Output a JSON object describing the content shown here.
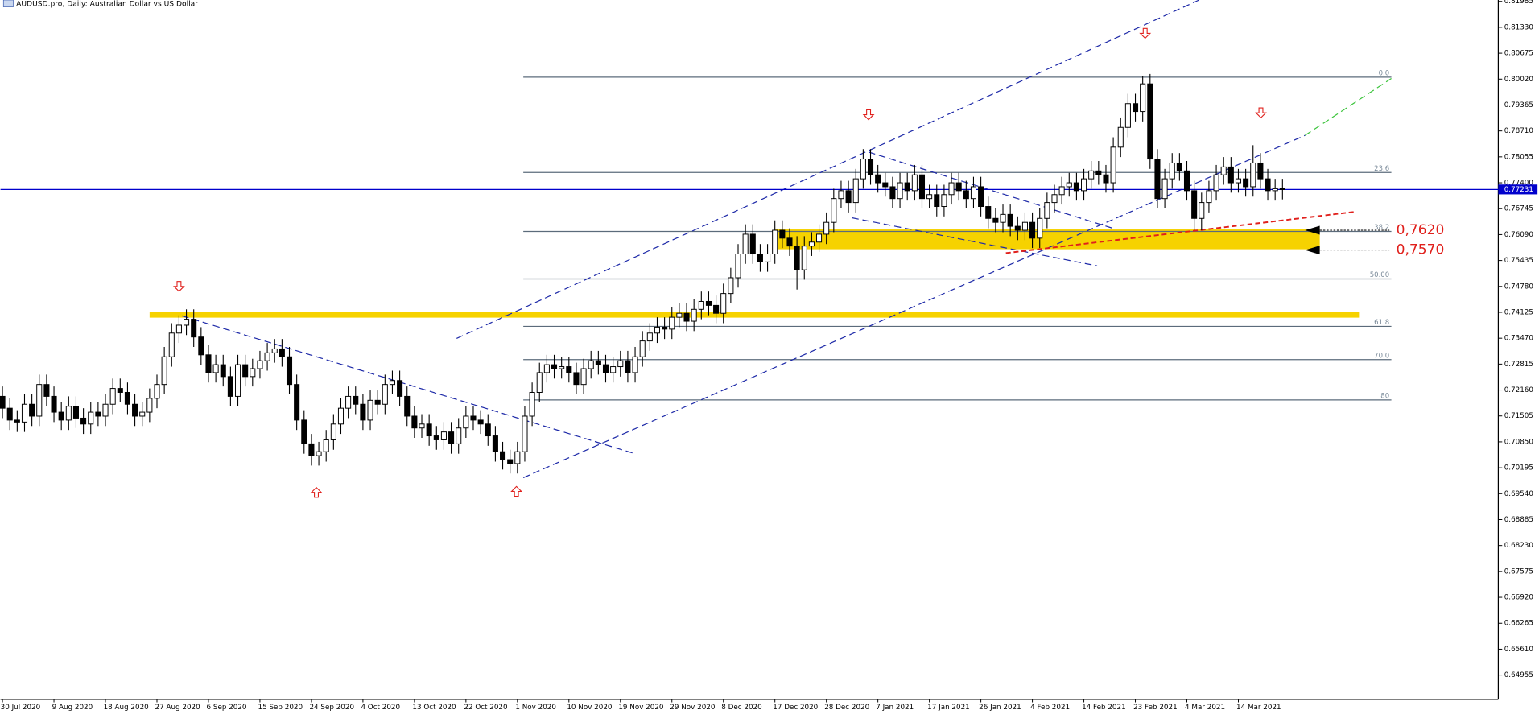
{
  "chart_data": {
    "type": "candlestick",
    "title": "AUDUSD.pro, Daily:  Australian Dollar vs US Dollar",
    "categories": [
      "30 Jul 2020",
      null,
      null,
      null,
      null,
      null,
      null,
      "9 Aug 2020",
      null,
      null,
      null,
      null,
      null,
      null,
      "18 Aug 2020",
      null,
      null,
      null,
      null,
      null,
      null,
      "27 Aug 2020",
      null,
      null,
      null,
      null,
      null,
      null,
      "6 Sep 2020",
      null,
      null,
      null,
      null,
      null,
      null,
      "15 Sep 2020",
      null,
      null,
      null,
      null,
      null,
      null,
      "24 Sep 2020",
      null,
      null,
      null,
      null,
      null,
      null,
      "4 Oct 2020",
      null,
      null,
      null,
      null,
      null,
      null,
      "13 Oct 2020",
      null,
      null,
      null,
      null,
      null,
      null,
      "22 Oct 2020",
      null,
      null,
      null,
      null,
      null,
      null,
      "1 Nov 2020",
      null,
      null,
      null,
      null,
      null,
      null,
      "10 Nov 2020",
      null,
      null,
      null,
      null,
      null,
      null,
      "19 Nov 2020",
      null,
      null,
      null,
      null,
      null,
      null,
      "29 Nov 2020",
      null,
      null,
      null,
      null,
      null,
      null,
      "8 Dec 2020",
      null,
      null,
      null,
      null,
      null,
      null,
      "17 Dec 2020",
      null,
      null,
      null,
      null,
      null,
      null,
      "28 Dec 2020",
      null,
      null,
      null,
      null,
      null,
      null,
      "7 Jan 2021",
      null,
      null,
      null,
      null,
      null,
      null,
      "17 Jan 2021",
      null,
      null,
      null,
      null,
      null,
      null,
      "26 Jan 2021",
      null,
      null,
      null,
      null,
      null,
      null,
      "4 Feb 2021",
      null,
      null,
      null,
      null,
      null,
      null,
      "14 Feb 2021",
      null,
      null,
      null,
      null,
      null,
      null,
      "23 Feb 2021",
      null,
      null,
      null,
      null,
      null,
      null,
      "4 Mar 2021",
      null,
      null,
      null,
      null,
      null,
      null,
      "14 Mar 2021",
      null,
      null,
      null,
      null,
      null,
      null
    ],
    "open": [
      0.72,
      0.717,
      0.714,
      0.7135,
      0.718,
      0.715,
      0.723,
      0.72,
      0.716,
      0.714,
      0.7175,
      0.7145,
      0.713,
      0.716,
      0.715,
      0.718,
      0.722,
      0.721,
      0.718,
      0.715,
      0.716,
      0.7195,
      0.723,
      0.73,
      0.736,
      0.738,
      0.7395,
      0.735,
      0.7305,
      0.726,
      0.728,
      0.725,
      0.72,
      0.728,
      0.725,
      0.727,
      0.729,
      0.731,
      0.732,
      0.73,
      0.723,
      0.714,
      0.708,
      0.705,
      0.706,
      0.709,
      0.713,
      0.717,
      0.72,
      0.718,
      0.714,
      0.719,
      0.718,
      0.723,
      0.724,
      0.72,
      0.715,
      0.712,
      0.713,
      0.71,
      0.709,
      0.711,
      0.708,
      0.712,
      0.715,
      0.714,
      0.713,
      0.71,
      0.706,
      0.704,
      0.703,
      0.706,
      0.715,
      0.721,
      0.726,
      0.728,
      0.727,
      0.7275,
      0.726,
      0.723,
      0.727,
      0.729,
      0.728,
      0.726,
      0.7275,
      0.729,
      0.726,
      0.73,
      0.734,
      0.736,
      0.7375,
      0.737,
      0.74,
      0.741,
      0.739,
      0.742,
      0.744,
      0.743,
      0.741,
      0.746,
      0.75,
      0.756,
      0.761,
      0.756,
      0.754,
      0.756,
      0.762,
      0.76,
      0.758,
      0.752,
      0.758,
      0.759,
      0.761,
      0.764,
      0.77,
      0.772,
      0.769,
      0.775,
      0.78,
      0.776,
      0.774,
      0.773,
      0.77,
      0.774,
      0.772,
      0.776,
      0.77,
      0.771,
      0.768,
      0.771,
      0.774,
      0.772,
      0.77,
      0.773,
      0.768,
      0.765,
      0.764,
      0.766,
      0.763,
      0.762,
      0.764,
      0.76,
      0.765,
      0.769,
      0.771,
      0.773,
      0.774,
      0.772,
      0.775,
      0.777,
      0.776,
      0.774,
      0.783,
      0.788,
      0.794,
      0.792,
      0.799,
      0.78,
      0.77,
      0.775,
      0.779,
      0.777,
      0.772,
      0.765,
      0.769,
      0.772,
      0.776,
      0.778,
      0.774,
      0.775,
      0.773,
      0.779,
      0.775,
      0.772,
      0.7725
    ],
    "high": [
      0.7225,
      0.7195,
      0.7165,
      0.7205,
      0.7205,
      0.7255,
      0.7255,
      0.7225,
      0.7185,
      0.72,
      0.72,
      0.717,
      0.7185,
      0.7185,
      0.7205,
      0.7245,
      0.7245,
      0.7235,
      0.7205,
      0.7185,
      0.722,
      0.7255,
      0.7325,
      0.7385,
      0.7405,
      0.742,
      0.742,
      0.7375,
      0.733,
      0.7305,
      0.7305,
      0.7275,
      0.7305,
      0.7305,
      0.7295,
      0.7315,
      0.7335,
      0.7345,
      0.7345,
      0.7325,
      0.7255,
      0.7165,
      0.7105,
      0.7085,
      0.7115,
      0.7155,
      0.7195,
      0.7225,
      0.7225,
      0.7205,
      0.7215,
      0.7215,
      0.7255,
      0.7265,
      0.7265,
      0.7225,
      0.7175,
      0.7155,
      0.7155,
      0.7125,
      0.7135,
      0.7135,
      0.7145,
      0.7175,
      0.7175,
      0.7165,
      0.7155,
      0.7125,
      0.7085,
      0.7065,
      0.7085,
      0.7175,
      0.7235,
      0.7285,
      0.7305,
      0.7305,
      0.73,
      0.73,
      0.7285,
      0.7295,
      0.7315,
      0.7315,
      0.7305,
      0.73,
      0.7315,
      0.7315,
      0.7325,
      0.7365,
      0.7385,
      0.74,
      0.74,
      0.7425,
      0.7435,
      0.7435,
      0.7445,
      0.7465,
      0.7465,
      0.7455,
      0.7485,
      0.7525,
      0.7585,
      0.7635,
      0.7635,
      0.7585,
      0.7585,
      0.7645,
      0.7645,
      0.7625,
      0.7605,
      0.7605,
      0.7615,
      0.7635,
      0.7665,
      0.7725,
      0.7745,
      0.7745,
      0.7775,
      0.7825,
      0.7825,
      0.7785,
      0.7765,
      0.7755,
      0.7765,
      0.7765,
      0.7785,
      0.7785,
      0.7735,
      0.7735,
      0.7735,
      0.7765,
      0.7765,
      0.7745,
      0.7755,
      0.7755,
      0.7705,
      0.7675,
      0.7685,
      0.7685,
      0.7655,
      0.7665,
      0.7665,
      0.7675,
      0.7715,
      0.7735,
      0.7755,
      0.7765,
      0.7765,
      0.7775,
      0.7795,
      0.7795,
      0.7785,
      0.7855,
      0.7905,
      0.7965,
      0.7965,
      0.801,
      0.8015,
      0.7825,
      0.7775,
      0.7815,
      0.7815,
      0.7795,
      0.7745,
      0.7715,
      0.7745,
      0.7785,
      0.7805,
      0.7805,
      0.7775,
      0.7775,
      0.7835,
      0.7815,
      0.7775,
      0.775,
      0.775
    ],
    "low": [
      0.7145,
      0.7115,
      0.711,
      0.711,
      0.7125,
      0.7125,
      0.7175,
      0.7135,
      0.7115,
      0.7115,
      0.712,
      0.7105,
      0.7105,
      0.7125,
      0.7125,
      0.7155,
      0.7185,
      0.7155,
      0.7125,
      0.7125,
      0.7135,
      0.717,
      0.7205,
      0.7275,
      0.7335,
      0.7355,
      0.7325,
      0.728,
      0.7235,
      0.7235,
      0.7225,
      0.7175,
      0.7175,
      0.7225,
      0.7225,
      0.7245,
      0.7265,
      0.7285,
      0.7275,
      0.7205,
      0.7115,
      0.7055,
      0.7025,
      0.7025,
      0.7035,
      0.7065,
      0.7105,
      0.7145,
      0.7155,
      0.7115,
      0.7115,
      0.7155,
      0.7155,
      0.7205,
      0.7175,
      0.7125,
      0.7095,
      0.7095,
      0.7075,
      0.7065,
      0.7065,
      0.7055,
      0.7055,
      0.7095,
      0.7115,
      0.7105,
      0.7075,
      0.7035,
      0.7015,
      0.7005,
      0.7005,
      0.7035,
      0.7125,
      0.7185,
      0.7235,
      0.7245,
      0.7245,
      0.7235,
      0.7205,
      0.7205,
      0.7245,
      0.7255,
      0.7235,
      0.7235,
      0.725,
      0.7235,
      0.7235,
      0.7275,
      0.7315,
      0.7335,
      0.7345,
      0.7345,
      0.7375,
      0.7365,
      0.7365,
      0.7395,
      0.7405,
      0.7385,
      0.7385,
      0.7435,
      0.7475,
      0.7535,
      0.7535,
      0.7515,
      0.7515,
      0.7535,
      0.7575,
      0.7555,
      0.747,
      0.7495,
      0.7555,
      0.7565,
      0.7585,
      0.7615,
      0.7675,
      0.7665,
      0.7665,
      0.7725,
      0.7735,
      0.7715,
      0.7705,
      0.7675,
      0.7675,
      0.7695,
      0.7695,
      0.7675,
      0.7675,
      0.7655,
      0.7655,
      0.7685,
      0.7695,
      0.7675,
      0.7675,
      0.7655,
      0.7625,
      0.7615,
      0.7615,
      0.7605,
      0.7595,
      0.7595,
      0.7575,
      0.7575,
      0.7625,
      0.7665,
      0.7685,
      0.7705,
      0.7695,
      0.7695,
      0.7725,
      0.7735,
      0.7715,
      0.7715,
      0.7805,
      0.7855,
      0.7895,
      0.7895,
      0.7775,
      0.7675,
      0.7675,
      0.7725,
      0.7745,
      0.7695,
      0.762,
      0.762,
      0.7665,
      0.7695,
      0.7735,
      0.7715,
      0.7715,
      0.7705,
      0.7705,
      0.7725,
      0.7695,
      0.7695,
      0.7698
    ],
    "close": [
      0.717,
      0.714,
      0.7135,
      0.718,
      0.715,
      0.723,
      0.72,
      0.716,
      0.714,
      0.7175,
      0.7145,
      0.713,
      0.716,
      0.715,
      0.718,
      0.722,
      0.721,
      0.718,
      0.715,
      0.716,
      0.7195,
      0.723,
      0.73,
      0.736,
      0.738,
      0.7395,
      0.735,
      0.7305,
      0.726,
      0.728,
      0.725,
      0.72,
      0.728,
      0.725,
      0.727,
      0.729,
      0.731,
      0.732,
      0.73,
      0.723,
      0.714,
      0.708,
      0.705,
      0.706,
      0.709,
      0.713,
      0.717,
      0.72,
      0.718,
      0.714,
      0.719,
      0.718,
      0.723,
      0.724,
      0.72,
      0.715,
      0.712,
      0.713,
      0.71,
      0.709,
      0.711,
      0.708,
      0.712,
      0.715,
      0.714,
      0.713,
      0.71,
      0.706,
      0.704,
      0.703,
      0.706,
      0.715,
      0.721,
      0.726,
      0.728,
      0.727,
      0.7275,
      0.726,
      0.723,
      0.727,
      0.729,
      0.728,
      0.726,
      0.7275,
      0.729,
      0.726,
      0.73,
      0.734,
      0.736,
      0.7375,
      0.737,
      0.74,
      0.741,
      0.739,
      0.742,
      0.744,
      0.743,
      0.741,
      0.746,
      0.75,
      0.756,
      0.761,
      0.756,
      0.754,
      0.756,
      0.762,
      0.76,
      0.758,
      0.752,
      0.758,
      0.759,
      0.761,
      0.764,
      0.77,
      0.772,
      0.769,
      0.775,
      0.78,
      0.776,
      0.774,
      0.773,
      0.77,
      0.774,
      0.772,
      0.776,
      0.77,
      0.771,
      0.768,
      0.771,
      0.774,
      0.772,
      0.77,
      0.773,
      0.768,
      0.765,
      0.764,
      0.766,
      0.763,
      0.762,
      0.764,
      0.76,
      0.765,
      0.769,
      0.771,
      0.773,
      0.774,
      0.772,
      0.775,
      0.777,
      0.776,
      0.774,
      0.783,
      0.788,
      0.794,
      0.792,
      0.799,
      0.78,
      0.77,
      0.775,
      0.779,
      0.777,
      0.772,
      0.765,
      0.769,
      0.772,
      0.776,
      0.778,
      0.774,
      0.775,
      0.773,
      0.779,
      0.775,
      0.772,
      0.7725,
      0.7723
    ],
    "ylim": [
      0.6434,
      0.8202
    ],
    "yticks": [
      {
        "value": 0.81985,
        "label": "0.81985"
      },
      {
        "value": 0.8133,
        "label": "0.81330"
      },
      {
        "value": 0.80675,
        "label": "0.80675"
      },
      {
        "value": 0.8002,
        "label": "0.80020"
      },
      {
        "value": 0.79365,
        "label": "0.79365"
      },
      {
        "value": 0.7871,
        "label": "0.78710"
      },
      {
        "value": 0.78055,
        "label": "0.78055"
      },
      {
        "value": 0.774,
        "label": "0.77400"
      },
      {
        "value": 0.76745,
        "label": "0.76745"
      },
      {
        "value": 0.7609,
        "label": "0.76090"
      },
      {
        "value": 0.75435,
        "label": "0.75435"
      },
      {
        "value": 0.7478,
        "label": "0.74780"
      },
      {
        "value": 0.74125,
        "label": "0.74125"
      },
      {
        "value": 0.7347,
        "label": "0.73470"
      },
      {
        "value": 0.72815,
        "label": "0.72815"
      },
      {
        "value": 0.7216,
        "label": "0.72160"
      },
      {
        "value": 0.71505,
        "label": "0.71505"
      },
      {
        "value": 0.7085,
        "label": "0.70850"
      },
      {
        "value": 0.70195,
        "label": "0.70195"
      },
      {
        "value": 0.6954,
        "label": "0.69540"
      },
      {
        "value": 0.68885,
        "label": "0.68885"
      },
      {
        "value": 0.6823,
        "label": "0.68230"
      },
      {
        "value": 0.67575,
        "label": "0.67575"
      },
      {
        "value": 0.6692,
        "label": "0.66920"
      },
      {
        "value": 0.66265,
        "label": "0.66265"
      },
      {
        "value": 0.6561,
        "label": "0.65610"
      },
      {
        "value": 0.64955,
        "label": "0.64955"
      }
    ],
    "current_price": {
      "value": 0.77231,
      "label": "0.77231"
    },
    "fib_levels": [
      {
        "label": "0.0",
        "price": 0.8007
      },
      {
        "label": "23.6",
        "price": 0.7766
      },
      {
        "label": "38.2",
        "price": 0.7617
      },
      {
        "label": "50.00",
        "price": 0.7497
      },
      {
        "label": "61.8",
        "price": 0.7377
      },
      {
        "label": "70.0",
        "price": 0.7293
      },
      {
        "label": "80",
        "price": 0.7191
      }
    ],
    "zones": [
      [
        0.7399,
        0.7414
      ],
      [
        0.7572,
        0.7622
      ]
    ],
    "annotations": [
      {
        "text": "0,7620",
        "price": 0.762
      },
      {
        "text": "0,7570",
        "price": 0.757
      }
    ],
    "colors": {
      "up": "#ffffff",
      "down": "#000000",
      "zone": "#f6d200",
      "fib": "#5b6b7b",
      "price_line": "#0000cc",
      "annotation": "#e0201c"
    }
  }
}
